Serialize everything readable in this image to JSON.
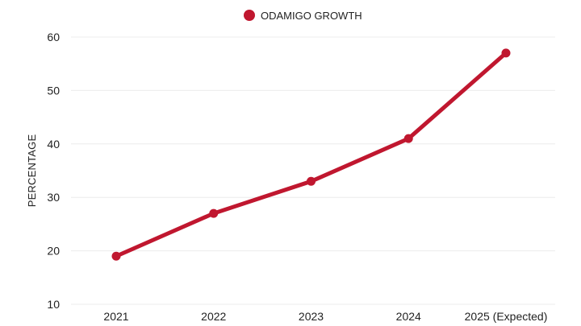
{
  "chart_data": {
    "type": "line",
    "title": "",
    "xlabel": "",
    "ylabel": "PERCENTAGE",
    "categories": [
      "2021",
      "2022",
      "2023",
      "2024",
      "2025 (Expected)"
    ],
    "series": [
      {
        "name": "ODAMIGO GROWTH",
        "values": [
          19,
          27,
          33,
          41,
          57
        ],
        "color": "#c0172f"
      }
    ],
    "ylim": [
      10,
      60
    ],
    "yticks": [
      10,
      20,
      30,
      40,
      50,
      60
    ],
    "grid": true,
    "legend": "top-center"
  }
}
